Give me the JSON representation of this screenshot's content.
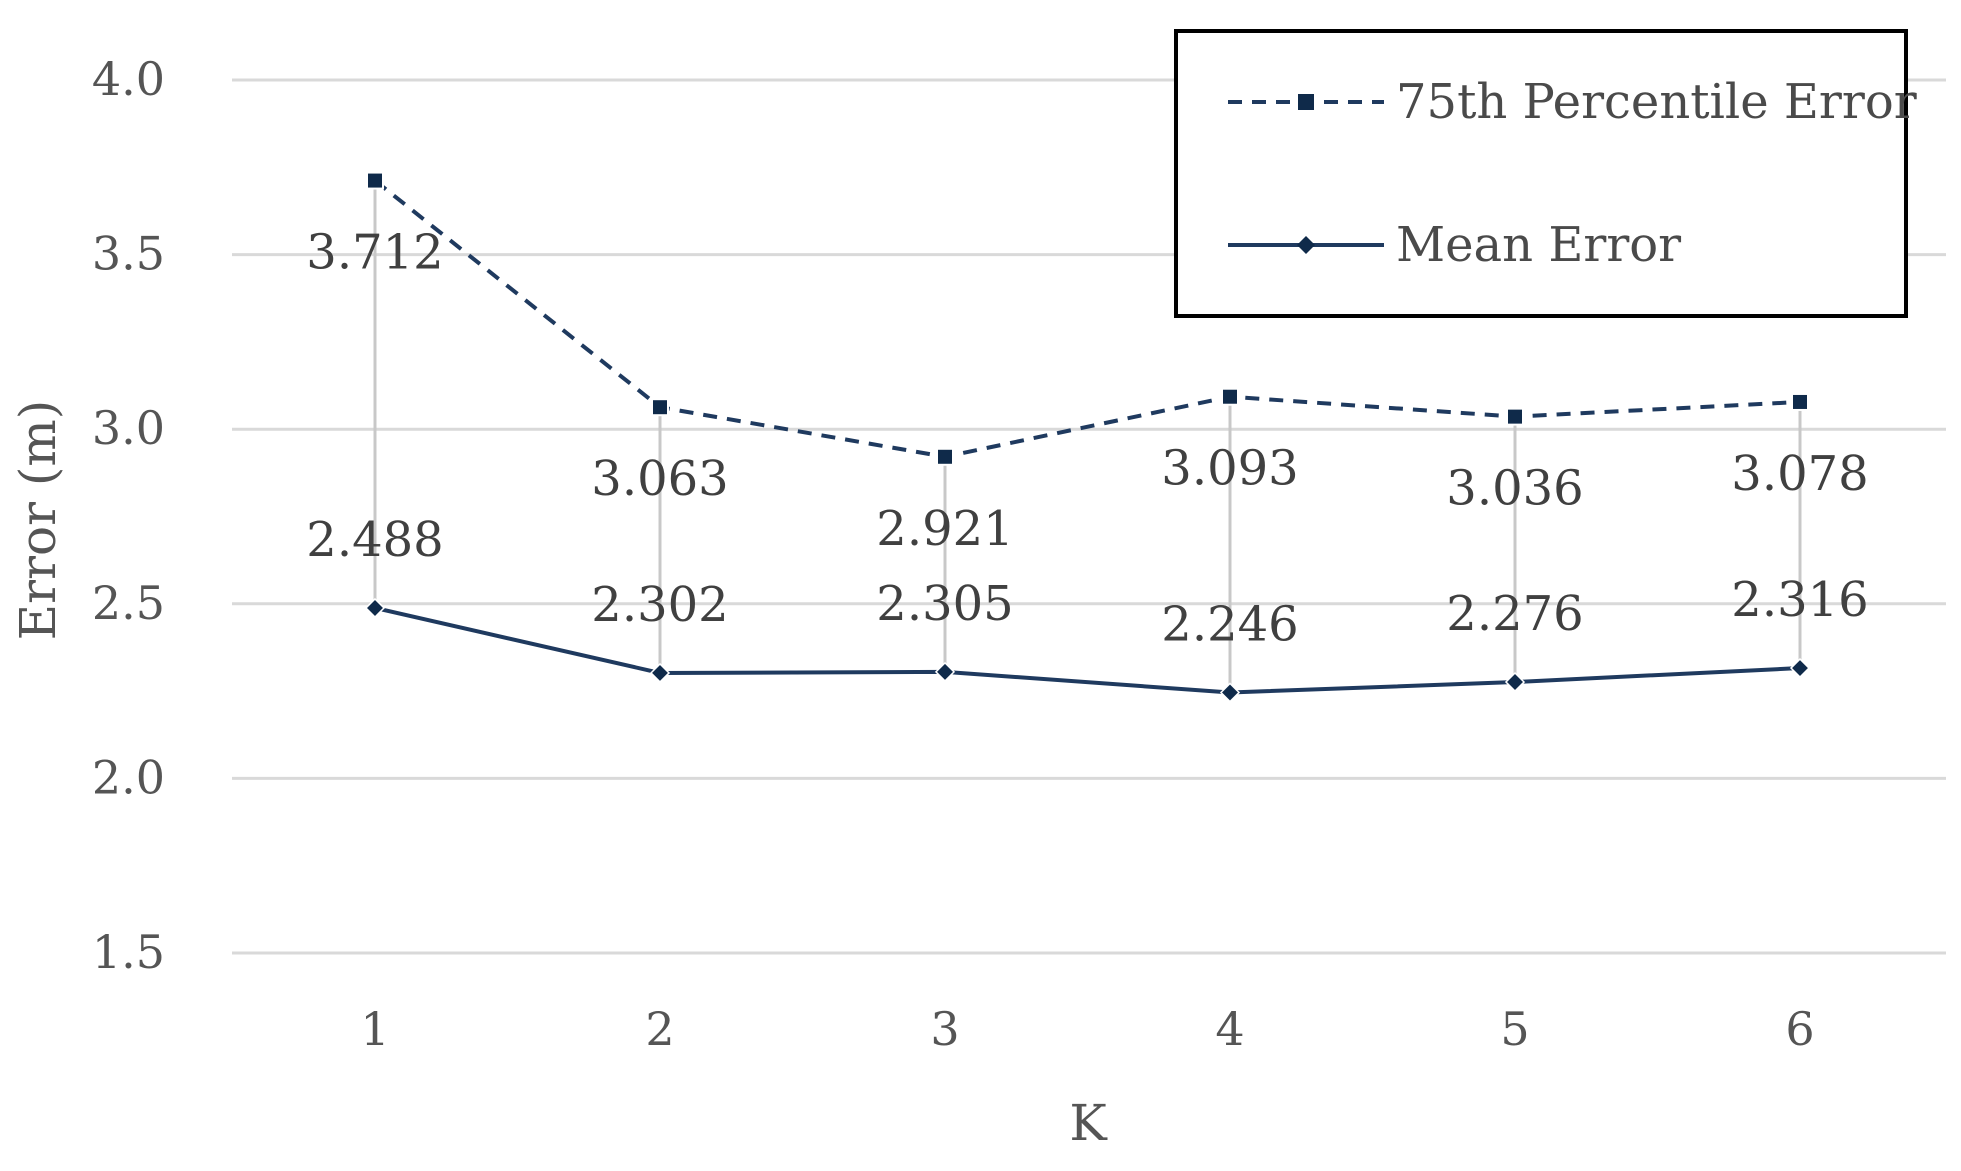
{
  "chart_data": {
    "type": "line",
    "title": "",
    "xlabel": "K",
    "ylabel": "Error (m)",
    "categories": [
      "1",
      "2",
      "3",
      "4",
      "5",
      "6"
    ],
    "ylim": [
      1.5,
      4.0
    ],
    "yticks": [
      "1.5",
      "2.0",
      "2.5",
      "3.0",
      "3.5",
      "4.0"
    ],
    "grid": true,
    "legend_position": "top-right",
    "series": [
      {
        "name": "75th Percentile Error",
        "values": [
          3.712,
          3.063,
          2.921,
          3.093,
          3.036,
          3.078
        ],
        "labels": [
          "3.712",
          "3.063",
          "2.921",
          "3.093",
          "3.036",
          "3.078"
        ],
        "line_style": "dashed",
        "marker": "square",
        "color": "#1f3a5f"
      },
      {
        "name": "Mean Error",
        "values": [
          2.488,
          2.302,
          2.305,
          2.246,
          2.276,
          2.316
        ],
        "labels": [
          "2.488",
          "2.302",
          "2.305",
          "2.246",
          "2.276",
          "2.316"
        ],
        "line_style": "solid",
        "marker": "diamond",
        "color": "#1f3a5f"
      }
    ]
  }
}
